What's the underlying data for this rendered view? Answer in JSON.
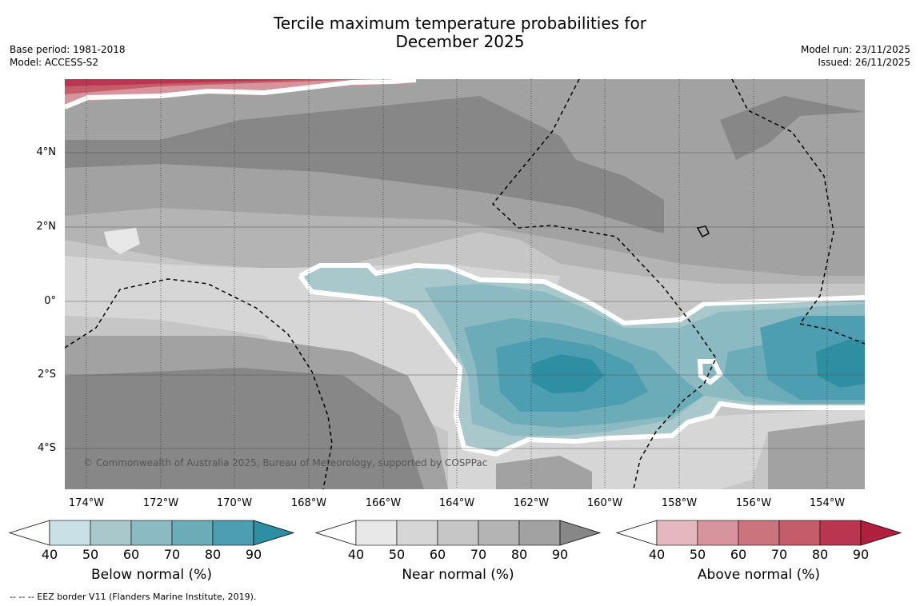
{
  "title_line1": "Tercile maximum temperature probabilities for",
  "title_line2": "December 2025",
  "meta_left": {
    "base_period": "Base period: 1981-2018",
    "model": "Model: ACCESS-S2"
  },
  "meta_right": {
    "model_run": "Model run: 23/11/2025",
    "issued": "Issued: 26/11/2025"
  },
  "y_labels": [
    "4°N",
    "2°N",
    "0°",
    "2°S",
    "4°S"
  ],
  "x_labels": [
    "174°W",
    "172°W",
    "170°W",
    "168°W",
    "166°W",
    "164°W",
    "162°W",
    "160°W",
    "158°W",
    "156°W",
    "154°W"
  ],
  "copyright": "© Commonwealth of Australia 2025, Bureau of Meteorology, supported by COSPPac",
  "footnote": "-- -- -- EEZ border V11 (Flanders Marine Institute, 2019).",
  "colorbars": [
    {
      "title": "Below normal (%)",
      "ticks": [
        "40",
        "50",
        "60",
        "70",
        "80",
        "90"
      ],
      "colors": [
        "#c8e0e6",
        "#a8c8cc",
        "#8cbac2",
        "#6cacb8",
        "#4c9eb0",
        "#2e8ea2"
      ]
    },
    {
      "title": "Near normal (%)",
      "ticks": [
        "40",
        "50",
        "60",
        "70",
        "80",
        "90"
      ],
      "colors": [
        "#e8e8e8",
        "#d6d6d6",
        "#c6c6c6",
        "#b4b4b4",
        "#a2a2a2",
        "#878787"
      ]
    },
    {
      "title": "Above normal (%)",
      "ticks": [
        "40",
        "50",
        "60",
        "70",
        "80",
        "90"
      ],
      "colors": [
        "#e4b8be",
        "#d8949c",
        "#cc747e",
        "#c45c6a",
        "#ba3650",
        "#b0203e"
      ]
    }
  ]
}
